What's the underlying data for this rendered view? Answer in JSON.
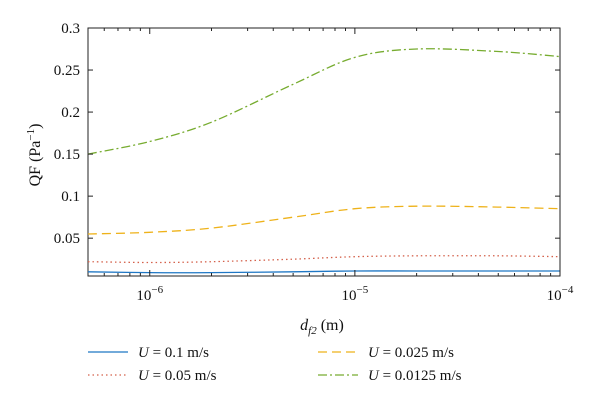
{
  "chart_data": {
    "type": "line",
    "xscale": "log",
    "xlim": [
      5e-07,
      0.0001
    ],
    "ylim": [
      0.005,
      0.3
    ],
    "x_ticks": [
      {
        "value": 1e-06,
        "label": "10",
        "exp": "−6"
      },
      {
        "value": 1e-05,
        "label": "10",
        "exp": "−5"
      },
      {
        "value": 0.0001,
        "label": "10",
        "exp": "−4"
      }
    ],
    "y_ticks": [
      {
        "value": 0.05,
        "label": "0.05"
      },
      {
        "value": 0.1,
        "label": "0.1"
      },
      {
        "value": 0.15,
        "label": "0.15"
      },
      {
        "value": 0.2,
        "label": "0.2"
      },
      {
        "value": 0.25,
        "label": "0.25"
      },
      {
        "value": 0.3,
        "label": "0.3"
      }
    ],
    "xlabel_main": "d",
    "xlabel_sub": "f2",
    "xlabel_unit": " (m)",
    "ylabel_main": "QF (Pa",
    "ylabel_exp": "−1",
    "ylabel_close": ")",
    "x": [
      5e-07,
      1e-06,
      2e-06,
      5e-06,
      1e-05,
      2e-05,
      5e-05,
      0.0001
    ],
    "series": [
      {
        "var": "U",
        "value_text": " = 0.1 m/s",
        "color": "#1f77c4",
        "dash": "",
        "values": [
          0.01,
          0.009,
          0.009,
          0.01,
          0.011,
          0.011,
          0.011,
          0.011
        ]
      },
      {
        "var": "U",
        "value_text": " = 0.05 m/s",
        "color": "#d4604a",
        "dash": "1.5,3",
        "values": [
          0.022,
          0.021,
          0.022,
          0.025,
          0.028,
          0.029,
          0.029,
          0.028
        ]
      },
      {
        "var": "U",
        "value_text": " = 0.025 m/s",
        "color": "#eeb21a",
        "dash": "9,5",
        "values": [
          0.055,
          0.057,
          0.062,
          0.075,
          0.085,
          0.088,
          0.087,
          0.085
        ]
      },
      {
        "var": "U",
        "value_text": " = 0.0125 m/s",
        "color": "#77ac30",
        "dash": "9,3,2,3",
        "values": [
          0.15,
          0.165,
          0.188,
          0.233,
          0.265,
          0.275,
          0.272,
          0.266
        ]
      }
    ],
    "grid": false,
    "legend_placement": "bottom"
  }
}
